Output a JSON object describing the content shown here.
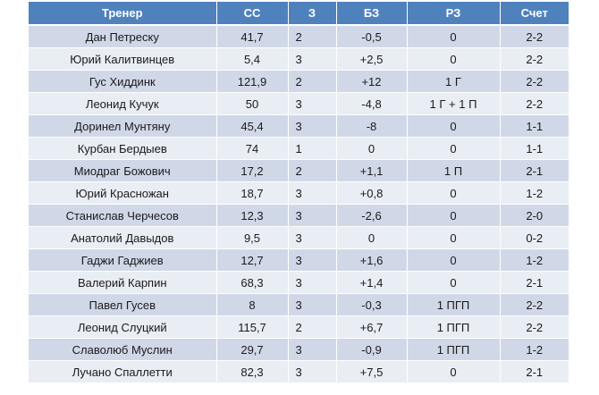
{
  "table": {
    "headers": [
      "Тренер",
      "СС",
      "З",
      "БЗ",
      "РЗ",
      "Счет"
    ],
    "rows": [
      {
        "coach": "Дан Петреску",
        "ss": "41,7",
        "z": "2",
        "bz": "-0,5",
        "rz": "0",
        "score": "2-2"
      },
      {
        "coach": "Юрий Калитвинцев",
        "ss": "5,4",
        "z": "3",
        "bz": "+2,5",
        "rz": "0",
        "score": "2-2"
      },
      {
        "coach": "Гус Хиддинк",
        "ss": "121,9",
        "z": "2",
        "bz": "+12",
        "rz": "1 Г",
        "score": "2-2"
      },
      {
        "coach": "Леонид Кучук",
        "ss": "50",
        "z": "3",
        "bz": "-4,8",
        "rz": "1 Г + 1 П",
        "score": "2-2"
      },
      {
        "coach": "Доринел Мунтяну",
        "ss": "45,4",
        "z": "3",
        "bz": "-8",
        "rz": "0",
        "score": "1-1"
      },
      {
        "coach": "Курбан Бердыев",
        "ss": "74",
        "z": "1",
        "bz": "0",
        "rz": "0",
        "score": "1-1"
      },
      {
        "coach": "Миодраг Божович",
        "ss": "17,2",
        "z": "2",
        "bz": "+1,1",
        "rz": "1 П",
        "score": "2-1"
      },
      {
        "coach": "Юрий Красножан",
        "ss": "18,7",
        "z": "3",
        "bz": "+0,8",
        "rz": "0",
        "score": "1-2"
      },
      {
        "coach": "Станислав Черчесов",
        "ss": "12,3",
        "z": "3",
        "bz": "-2,6",
        "rz": "0",
        "score": "2-0"
      },
      {
        "coach": "Анатолий Давыдов",
        "ss": "9,5",
        "z": "3",
        "bz": "0",
        "rz": "0",
        "score": "0-2"
      },
      {
        "coach": "Гаджи Гаджиев",
        "ss": "12,7",
        "z": "3",
        "bz": "+1,6",
        "rz": "0",
        "score": "1-2"
      },
      {
        "coach": "Валерий Карпин",
        "ss": "68,3",
        "z": "3",
        "bz": "+1,4",
        "rz": "0",
        "score": "2-1"
      },
      {
        "coach": "Павел Гусев",
        "ss": "8",
        "z": "3",
        "bz": "-0,3",
        "rz": "1 ПГП",
        "score": "2-2"
      },
      {
        "coach": "Леонид Слуцкий",
        "ss": "115,7",
        "z": "2",
        "bz": "+6,7",
        "rz": "1 ПГП",
        "score": "2-2"
      },
      {
        "coach": "Славолюб Муслин",
        "ss": "29,7",
        "z": "3",
        "bz": "-0,9",
        "rz": "1 ПГП",
        "score": "1-2"
      },
      {
        "coach": "Лучано Спаллетти",
        "ss": "82,3",
        "z": "3",
        "bz": "+7,5",
        "rz": "0",
        "score": "2-1"
      }
    ]
  },
  "colors": {
    "header_bg": "#4f81bd",
    "header_text": "#ffffff",
    "row_odd_bg": "#d0d8e8",
    "row_even_bg": "#e9edf4"
  }
}
